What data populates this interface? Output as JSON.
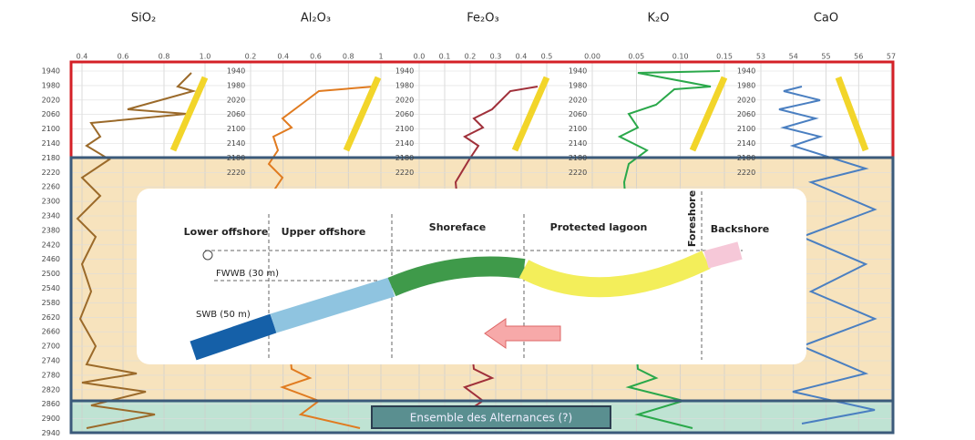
{
  "panels": [
    {
      "title": "SiO₂",
      "ticks": [
        "0.4",
        "0.6",
        "0.8",
        "1.0"
      ]
    },
    {
      "title": "Al₂O₃",
      "ticks": [
        "0.2",
        "0.4",
        "0.6",
        "0.8",
        "1"
      ]
    },
    {
      "title": "Fe₂O₃",
      "ticks": [
        "0.0",
        "0.1",
        "0.2",
        "0.3",
        "0.4",
        "0.5"
      ]
    },
    {
      "title": "K₂O",
      "ticks": [
        "0.00",
        "0.05",
        "0.10",
        "0.15"
      ]
    },
    {
      "title": "CaO",
      "ticks": [
        "53",
        "54",
        "55",
        "56",
        "57"
      ]
    }
  ],
  "depths": [
    "1940",
    "1980",
    "2020",
    "2060",
    "2100",
    "2140",
    "2180",
    "2220",
    "2260",
    "2300",
    "2340",
    "2380",
    "2420",
    "2460",
    "2500",
    "2540",
    "2580",
    "2620",
    "2660",
    "2700",
    "2740",
    "2780",
    "2820",
    "2860",
    "2900",
    "2940"
  ],
  "inset": {
    "zones": [
      "Lower offshore",
      "Upper offshore",
      "Shoreface",
      "Protected lagoon",
      "Foreshore",
      "Backshore"
    ],
    "fwwb": "FWWB (30 m)",
    "swb": "SWB (50 m)"
  },
  "unit_label": "Ensemble des Alternances (?)"
}
